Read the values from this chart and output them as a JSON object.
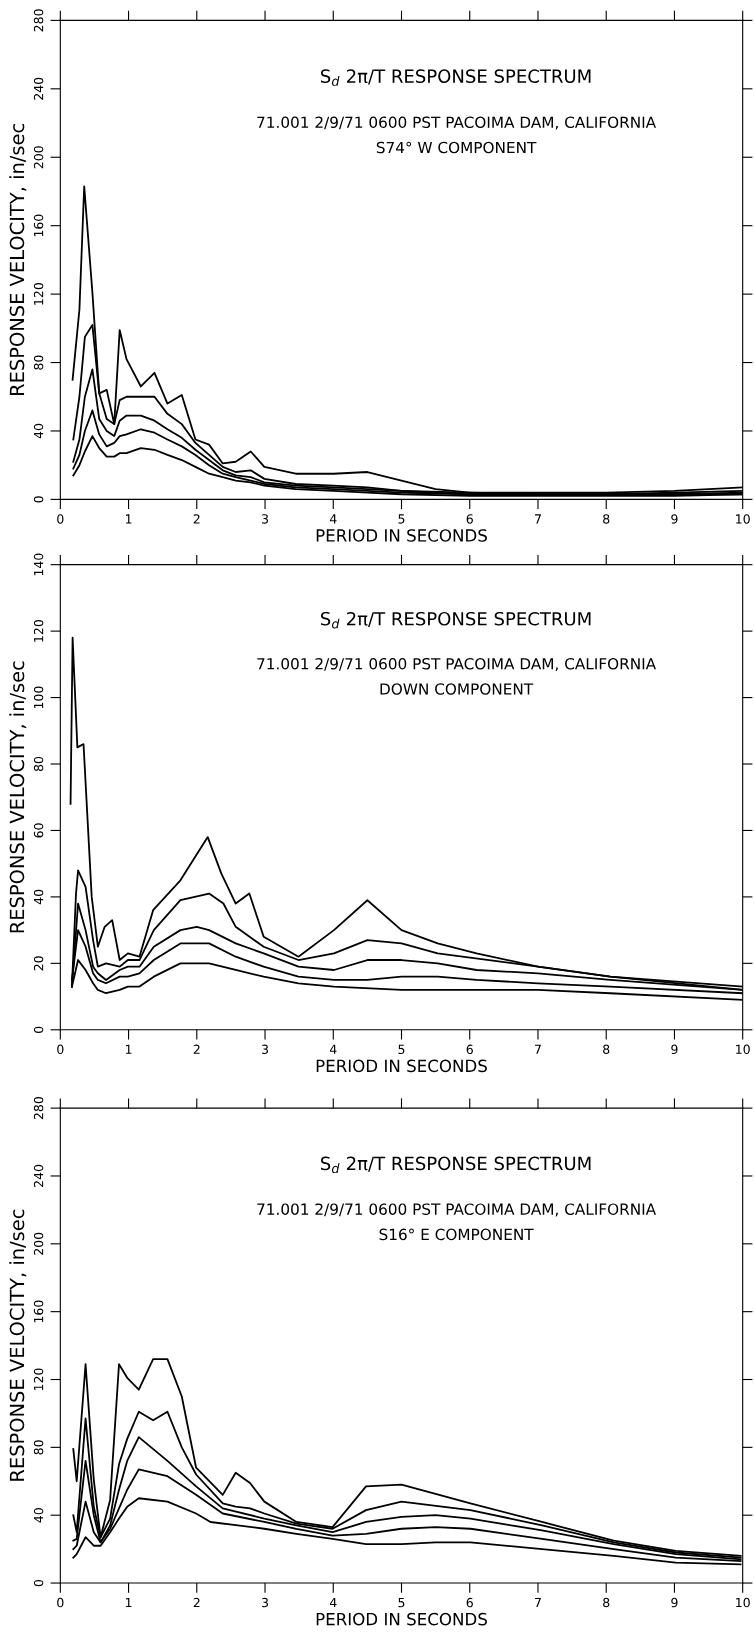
{
  "chart_data": [
    {
      "type": "line",
      "title": "S$_{d}$ 2π/T RESPONSE SPECTRUM",
      "subtitle": "71.001 2/9/71 0600 PST PACOIMA DAM, CALIFORNIA\nS74° W COMPONENT",
      "xlabel": "PERIOD IN SECONDS",
      "ylabel": "RESPONSE VELOCITY, in/sec",
      "xlim": [
        0,
        10
      ],
      "ylim": [
        0,
        280
      ],
      "xticks": [
        0,
        1,
        2,
        3,
        4,
        5,
        6,
        7,
        8,
        9,
        10
      ],
      "yticks": [
        0,
        40,
        80,
        120,
        160,
        200,
        240,
        280
      ],
      "series": [
        {
          "color": "#000000",
          "x": [
            0.18,
            0.28,
            0.35,
            0.47,
            0.57,
            0.68,
            0.79,
            0.87,
            0.97,
            1.18,
            1.38,
            1.57,
            1.78,
            1.98,
            2.18,
            2.38,
            2.57,
            2.79,
            2.99,
            3.45,
            4.0,
            4.5,
            5.0,
            5.5,
            6,
            7,
            8,
            9,
            10
          ],
          "values": [
            70,
            111,
            183,
            121,
            62,
            64,
            44,
            99,
            82,
            66,
            74,
            56,
            61,
            35,
            32,
            21,
            22,
            28,
            19,
            15,
            15,
            16,
            11,
            6,
            4,
            4,
            4,
            5,
            7
          ]
        },
        {
          "color": "#000000",
          "x": [
            0.19,
            0.28,
            0.36,
            0.47,
            0.57,
            0.68,
            0.79,
            0.87,
            0.97,
            1.18,
            1.38,
            1.57,
            1.78,
            1.98,
            2.18,
            2.38,
            2.57,
            2.79,
            2.99,
            3.45,
            4,
            4.5,
            5,
            6,
            7,
            8,
            9,
            10
          ],
          "values": [
            35,
            60,
            95,
            102,
            62,
            47,
            44,
            58,
            60,
            60,
            60,
            50,
            44,
            33,
            26,
            19,
            16,
            17,
            12,
            9,
            8,
            7,
            5,
            4,
            3,
            3,
            4,
            5
          ]
        },
        {
          "color": "#000000",
          "x": [
            0.19,
            0.28,
            0.36,
            0.47,
            0.57,
            0.68,
            0.79,
            0.87,
            0.97,
            1.18,
            1.38,
            1.57,
            1.78,
            1.98,
            2.18,
            2.38,
            2.57,
            2.79,
            2.99,
            3.45,
            4,
            4.5,
            5,
            6,
            7,
            8,
            9,
            10
          ],
          "values": [
            22,
            35,
            60,
            76,
            47,
            40,
            37,
            46,
            49,
            49,
            46,
            41,
            36,
            29,
            23,
            17,
            14,
            13,
            10,
            8,
            7,
            6,
            5,
            3,
            3,
            3,
            3,
            4
          ]
        },
        {
          "color": "#000000",
          "x": [
            0.19,
            0.28,
            0.36,
            0.47,
            0.57,
            0.68,
            0.79,
            0.87,
            0.97,
            1.18,
            1.38,
            1.57,
            1.78,
            1.98,
            2.18,
            2.38,
            2.57,
            2.79,
            2.99,
            3.45,
            4,
            4.5,
            5,
            6,
            7,
            8,
            9,
            10
          ],
          "values": [
            18,
            26,
            40,
            52,
            38,
            31,
            33,
            37,
            38,
            41,
            39,
            35,
            31,
            26,
            20,
            15,
            13,
            11,
            9,
            7,
            6,
            5,
            4,
            3,
            3,
            3,
            3,
            3
          ]
        },
        {
          "color": "#000000",
          "x": [
            0.19,
            0.28,
            0.36,
            0.47,
            0.57,
            0.68,
            0.79,
            0.87,
            0.97,
            1.18,
            1.38,
            1.57,
            1.78,
            1.98,
            2.18,
            2.38,
            2.57,
            2.79,
            2.99,
            3.45,
            4,
            4.5,
            5,
            6,
            7,
            8,
            9,
            10
          ],
          "values": [
            14,
            20,
            28,
            37,
            30,
            25,
            25,
            27,
            27,
            30,
            29,
            26,
            23,
            19,
            15,
            13,
            11,
            10,
            8,
            6,
            5,
            4,
            3,
            2,
            2,
            2,
            2,
            3
          ]
        }
      ]
    },
    {
      "type": "line",
      "title": "S$_{d}$ 2π/T RESPONSE SPECTRUM",
      "subtitle": "71.001 2/9/71 0600 PST PACOIMA DAM, CALIFORNIA\nDOWN COMPONENT",
      "xlabel": "PERIOD IN SECONDS",
      "ylabel": "RESPONSE VELOCITY, in/sec",
      "xlim": [
        0,
        10
      ],
      "ylim": [
        0,
        140
      ],
      "xticks": [
        0,
        1,
        2,
        3,
        4,
        5,
        6,
        7,
        8,
        9,
        10
      ],
      "yticks": [
        0,
        20,
        40,
        60,
        80,
        100,
        120,
        140
      ],
      "series": [
        {
          "color": "#000000",
          "x": [
            0.15,
            0.18,
            0.25,
            0.34,
            0.46,
            0.55,
            0.65,
            0.76,
            0.87,
            0.99,
            1.16,
            1.36,
            1.76,
            2.16,
            2.36,
            2.57,
            2.77,
            2.98,
            3.49,
            4.01,
            4.5,
            5.0,
            5.53,
            6.1,
            7.0,
            8.06,
            9.05,
            10.0
          ],
          "values": [
            68,
            118,
            85,
            86,
            40,
            25,
            31,
            33,
            21,
            23,
            22,
            36,
            45,
            58,
            47,
            38,
            41,
            28,
            22,
            30,
            39,
            30,
            26,
            23,
            19,
            16,
            14,
            12
          ]
        },
        {
          "color": "#000000",
          "x": [
            0.17,
            0.23,
            0.26,
            0.37,
            0.48,
            0.55,
            0.67,
            0.87,
            0.99,
            1.16,
            1.37,
            1.76,
            2.18,
            2.39,
            2.57,
            2.98,
            3.49,
            4.01,
            4.5,
            5.0,
            5.53,
            7.0,
            8.06,
            10.0
          ],
          "values": [
            13,
            41,
            48,
            43,
            27,
            19,
            20,
            19,
            21,
            21,
            30,
            39,
            41,
            38,
            31,
            25,
            21,
            23,
            27,
            26,
            23,
            19,
            16,
            13
          ]
        },
        {
          "color": "#000000",
          "x": [
            0.17,
            0.26,
            0.37,
            0.48,
            0.55,
            0.67,
            0.87,
            0.99,
            1.16,
            1.37,
            1.76,
            2.0,
            2.18,
            2.57,
            2.98,
            3.49,
            4.01,
            4.5,
            5.0,
            5.53,
            6.1,
            7.0,
            8.06,
            10.0
          ],
          "values": [
            13,
            38,
            30,
            19,
            17,
            15,
            18,
            19,
            19,
            25,
            30,
            31,
            30,
            26,
            23,
            19,
            18,
            21,
            21,
            20,
            18,
            17,
            15,
            12
          ]
        },
        {
          "color": "#000000",
          "x": [
            0.17,
            0.26,
            0.37,
            0.48,
            0.55,
            0.67,
            0.87,
            0.99,
            1.16,
            1.37,
            1.76,
            2.18,
            2.57,
            2.98,
            3.49,
            4.01,
            4.5,
            5.0,
            5.53,
            6.1,
            7.0,
            8.06,
            10.0
          ],
          "values": [
            15,
            30,
            25,
            17,
            15,
            14,
            16,
            16,
            17,
            21,
            26,
            26,
            22,
            19,
            16,
            15,
            15,
            16,
            16,
            15,
            14,
            13,
            11
          ]
        },
        {
          "color": "#000000",
          "x": [
            0.17,
            0.26,
            0.37,
            0.48,
            0.55,
            0.67,
            0.87,
            0.99,
            1.16,
            1.37,
            1.76,
            2.18,
            2.57,
            2.98,
            3.49,
            4.01,
            5.0,
            5.53,
            6.1,
            7.0,
            8.06,
            10.0
          ],
          "values": [
            13,
            21,
            18,
            14,
            12,
            11,
            12,
            13,
            13,
            16,
            20,
            20,
            18,
            16,
            14,
            13,
            12,
            12,
            12,
            12,
            11,
            9
          ]
        }
      ]
    },
    {
      "type": "line",
      "title": "S$_{d}$ 2π/T RESPONSE SPECTRUM",
      "subtitle": "71.001 2/9/71 0600 PST PACOIMA DAM, CALIFORNIA\nS16° E COMPONENT",
      "xlabel": "PERIOD IN SECONDS",
      "ylabel": "RESPONSE VELOCITY, in/sec",
      "xlim": [
        0,
        10
      ],
      "ylim": [
        0,
        280
      ],
      "xticks": [
        0,
        1,
        2,
        3,
        4,
        5,
        6,
        7,
        8,
        9,
        10
      ],
      "yticks": [
        0,
        40,
        80,
        120,
        160,
        200,
        240,
        280
      ],
      "series": [
        {
          "color": "#000000",
          "x": [
            0.19,
            0.24,
            0.37,
            0.49,
            0.59,
            0.73,
            0.86,
            0.98,
            1.15,
            1.36,
            1.57,
            1.78,
            1.99,
            2.38,
            2.57,
            2.78,
            2.99,
            3.46,
            3.99,
            4.48,
            5.0,
            6.01,
            7.06,
            8.11,
            9.02,
            9.97
          ],
          "values": [
            79,
            60,
            129,
            61,
            27,
            49,
            129,
            121,
            114,
            132,
            132,
            110,
            68,
            52,
            65,
            59,
            48,
            36,
            33,
            57,
            58,
            47,
            36,
            25,
            19,
            16
          ]
        },
        {
          "color": "#000000",
          "x": [
            0.19,
            0.24,
            0.37,
            0.49,
            0.59,
            0.73,
            0.86,
            0.98,
            1.15,
            1.36,
            1.57,
            1.78,
            1.99,
            2.38,
            2.57,
            2.78,
            2.99,
            3.46,
            3.99,
            4.48,
            5.0,
            6.01,
            7.06,
            8.11,
            9.02,
            9.97
          ],
          "values": [
            40,
            30,
            97,
            45,
            27,
            38,
            70,
            85,
            101,
            96,
            101,
            80,
            64,
            47,
            45,
            44,
            41,
            35,
            32,
            43,
            48,
            43,
            34,
            24,
            18,
            15
          ]
        },
        {
          "color": "#000000",
          "x": [
            0.19,
            0.24,
            0.37,
            0.49,
            0.59,
            0.73,
            0.86,
            0.98,
            1.15,
            1.57,
            1.99,
            2.38,
            2.99,
            3.46,
            3.99,
            4.48,
            5.0,
            5.5,
            6.01,
            7.06,
            8.11,
            9.02,
            9.97
          ],
          "values": [
            25,
            26,
            72,
            40,
            24,
            34,
            55,
            72,
            86,
            72,
            57,
            44,
            38,
            34,
            30,
            36,
            39,
            40,
            38,
            31,
            23,
            17,
            14
          ]
        },
        {
          "color": "#000000",
          "x": [
            0.19,
            0.24,
            0.37,
            0.49,
            0.59,
            0.73,
            0.86,
            0.98,
            1.15,
            1.57,
            1.99,
            2.38,
            2.99,
            3.46,
            3.99,
            4.48,
            5.0,
            5.5,
            6.01,
            7.06,
            8.11,
            9.02,
            9.97
          ],
          "values": [
            20,
            22,
            48,
            30,
            24,
            32,
            44,
            55,
            67,
            63,
            52,
            41,
            36,
            32,
            28,
            29,
            32,
            33,
            32,
            26,
            20,
            15,
            13
          ]
        },
        {
          "color": "#000000",
          "x": [
            0.19,
            0.24,
            0.37,
            0.49,
            0.59,
            0.73,
            0.86,
            0.98,
            1.15,
            1.57,
            1.99,
            2.2,
            2.99,
            3.46,
            3.99,
            4.48,
            5.0,
            5.5,
            6.01,
            7.06,
            8.11,
            9.02,
            9.97
          ],
          "values": [
            15,
            17,
            27,
            22,
            22,
            30,
            38,
            45,
            50,
            48,
            41,
            36,
            32,
            29,
            26,
            23,
            23,
            24,
            24,
            20,
            16,
            12,
            11
          ]
        }
      ]
    }
  ]
}
